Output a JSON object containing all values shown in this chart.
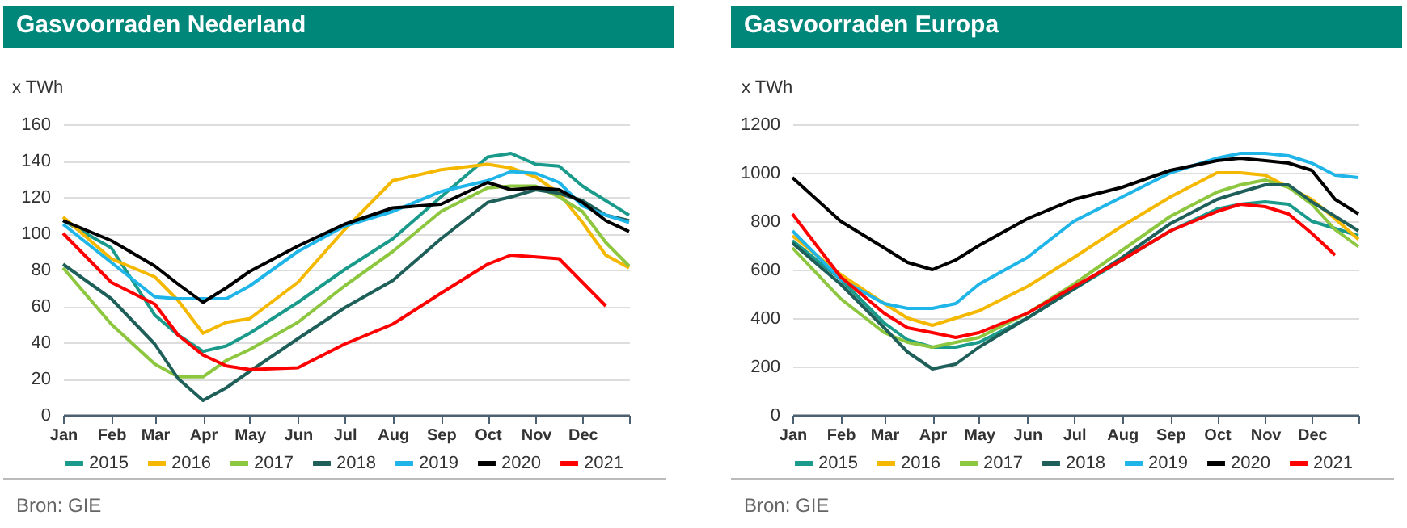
{
  "chart_data": [
    {
      "type": "line",
      "title": "Gasvoorraden Nederland",
      "ylabel": "x TWh",
      "annotations": [
        "Bron: GIE"
      ],
      "xlim": [
        "--01-01",
        "--12-31"
      ],
      "xticks": [
        {
          "value": "--01-01",
          "label": "Jan"
        },
        {
          "value": "--02-01",
          "label": "Feb"
        },
        {
          "value": "--03-01",
          "label": "Mar"
        },
        {
          "value": "--04-01",
          "label": "Apr"
        },
        {
          "value": "--05-01",
          "label": "May"
        },
        {
          "value": "--06-01",
          "label": "Jun"
        },
        {
          "value": "--07-01",
          "label": "Jul"
        },
        {
          "value": "--08-01",
          "label": "Aug"
        },
        {
          "value": "--09-01",
          "label": "Sep"
        },
        {
          "value": "--10-01",
          "label": "Oct"
        },
        {
          "value": "--11-01",
          "label": "Nov"
        },
        {
          "value": "--12-01",
          "label": "Dec"
        },
        {
          "value": "--12-31",
          "label": null
        }
      ],
      "ylim": [
        0,
        160
      ],
      "yticks": [
        0,
        20,
        40,
        60,
        80,
        100,
        120,
        140,
        160
      ],
      "grid": "y",
      "legend": "bottom",
      "x": [
        "--01-01",
        "--02-01",
        "--03-01",
        "--03-16",
        "--04-01",
        "--04-16",
        "--05-01",
        "--06-01",
        "--07-01",
        "--08-01",
        "--09-01",
        "--10-01",
        "--10-16",
        "--11-01",
        "--11-16",
        "--12-01",
        "--12-16",
        "--12-31"
      ],
      "series": [
        {
          "name": "2015",
          "color": "#1a9a8a",
          "values": [
            107,
            92,
            55,
            44,
            35,
            38,
            45,
            62,
            80,
            97,
            120,
            142,
            144,
            138,
            137,
            126,
            118,
            110
          ]
        },
        {
          "name": "2016",
          "color": "#f5b800",
          "values": [
            109,
            86,
            76,
            63,
            45,
            51,
            53,
            73,
            102,
            129,
            135,
            138,
            136,
            131,
            122,
            106,
            88,
            81
          ]
        },
        {
          "name": "2017",
          "color": "#8dc63f",
          "values": [
            81,
            50,
            28,
            21,
            21,
            30,
            36,
            51,
            71,
            90,
            112,
            125,
            126,
            126,
            120,
            112,
            95,
            82
          ]
        },
        {
          "name": "2018",
          "color": "#1e5f5a",
          "values": [
            83,
            64,
            39,
            20,
            8,
            15,
            24,
            42,
            59,
            74,
            97,
            117,
            120,
            124,
            122,
            118,
            110,
            107
          ]
        },
        {
          "name": "2019",
          "color": "#1fb5e8",
          "values": [
            105,
            84,
            65,
            64,
            64,
            64,
            71,
            90,
            104,
            112,
            123,
            129,
            134,
            133,
            128,
            115,
            110,
            106
          ]
        },
        {
          "name": "2020",
          "color": "#000000",
          "values": [
            107,
            96,
            82,
            72,
            62,
            70,
            79,
            93,
            105,
            114,
            116,
            128,
            124,
            125,
            124,
            117,
            107,
            101
          ]
        },
        {
          "name": "2021",
          "color": "#ff0000",
          "values": [
            100,
            73,
            61,
            44,
            33,
            27,
            25,
            26,
            39,
            50,
            67,
            83,
            88,
            87,
            86,
            73,
            60,
            null
          ]
        }
      ]
    },
    {
      "type": "line",
      "title": "Gasvoorraden Europa",
      "ylabel": "x TWh",
      "annotations": [
        "Bron: GIE"
      ],
      "xlim": [
        "--01-01",
        "--12-31"
      ],
      "xticks": [
        {
          "value": "--01-01",
          "label": "Jan"
        },
        {
          "value": "--02-01",
          "label": "Feb"
        },
        {
          "value": "--03-01",
          "label": "Mar"
        },
        {
          "value": "--04-01",
          "label": "Apr"
        },
        {
          "value": "--05-01",
          "label": "May"
        },
        {
          "value": "--06-01",
          "label": "Jun"
        },
        {
          "value": "--07-01",
          "label": "Jul"
        },
        {
          "value": "--08-01",
          "label": "Aug"
        },
        {
          "value": "--09-01",
          "label": "Sep"
        },
        {
          "value": "--10-01",
          "label": "Oct"
        },
        {
          "value": "--11-01",
          "label": "Nov"
        },
        {
          "value": "--12-01",
          "label": "Dec"
        },
        {
          "value": "--12-31",
          "label": null
        }
      ],
      "ylim": [
        0,
        1200
      ],
      "yticks": [
        0,
        200,
        400,
        600,
        800,
        1000,
        1200
      ],
      "grid": "y",
      "legend": "bottom",
      "x": [
        "--01-01",
        "--02-01",
        "--03-01",
        "--03-16",
        "--04-01",
        "--04-16",
        "--05-01",
        "--06-01",
        "--07-01",
        "--08-01",
        "--09-01",
        "--10-01",
        "--10-16",
        "--11-01",
        "--11-16",
        "--12-01",
        "--12-16",
        "--12-31"
      ],
      "series": [
        {
          "name": "2015",
          "color": "#1a9a8a",
          "values": [
            720,
            560,
            380,
            310,
            280,
            280,
            300,
            400,
            520,
            640,
            760,
            850,
            870,
            880,
            870,
            800,
            770,
            740
          ]
        },
        {
          "name": "2016",
          "color": "#f5b800",
          "values": [
            740,
            580,
            460,
            400,
            370,
            400,
            430,
            530,
            650,
            780,
            900,
            1000,
            1000,
            990,
            940,
            890,
            810,
            725
          ]
        },
        {
          "name": "2017",
          "color": "#8dc63f",
          "values": [
            690,
            480,
            340,
            300,
            280,
            300,
            320,
            420,
            540,
            680,
            820,
            920,
            950,
            970,
            940,
            870,
            765,
            695
          ]
        },
        {
          "name": "2018",
          "color": "#1e5f5a",
          "values": [
            710,
            540,
            360,
            260,
            190,
            210,
            280,
            400,
            520,
            650,
            790,
            890,
            920,
            950,
            950,
            880,
            820,
            760
          ]
        },
        {
          "name": "2019",
          "color": "#1fb5e8",
          "values": [
            760,
            560,
            460,
            440,
            440,
            460,
            540,
            650,
            800,
            900,
            1000,
            1060,
            1080,
            1080,
            1070,
            1040,
            990,
            980
          ]
        },
        {
          "name": "2020",
          "color": "#000000",
          "values": [
            980,
            800,
            690,
            630,
            600,
            640,
            700,
            810,
            890,
            940,
            1010,
            1050,
            1060,
            1050,
            1040,
            1010,
            890,
            830
          ]
        },
        {
          "name": "2021",
          "color": "#ff0000",
          "values": [
            830,
            570,
            420,
            360,
            340,
            320,
            340,
            420,
            530,
            640,
            760,
            840,
            870,
            860,
            830,
            750,
            660,
            null
          ]
        }
      ]
    }
  ]
}
